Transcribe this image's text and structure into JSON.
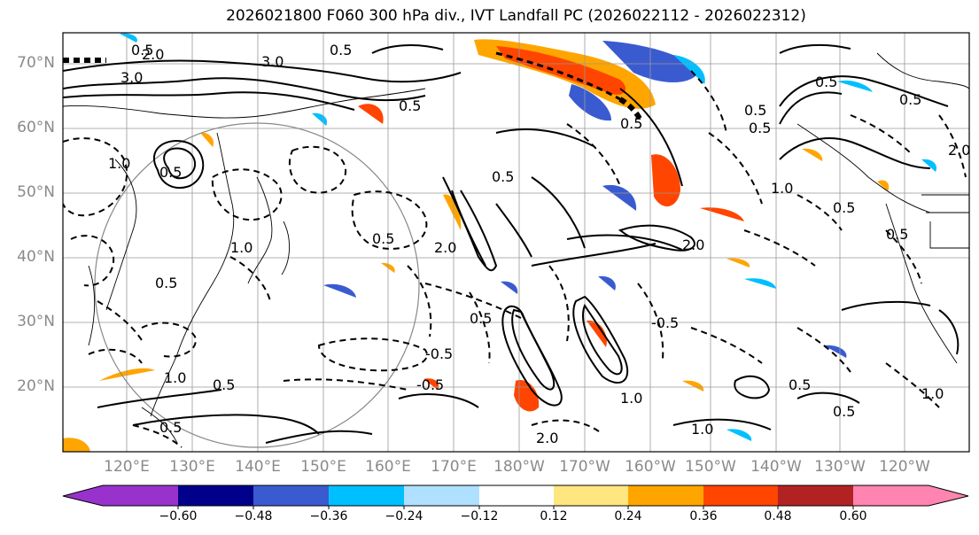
{
  "title": "2026021800 F060 300 hPa div., IVT Landfall PC (2026022112 - 2026022312)",
  "map": {
    "lat_labels": [
      "70°N",
      "60°N",
      "50°N",
      "40°N",
      "30°N",
      "20°N"
    ],
    "lon_labels": [
      "120°E",
      "130°E",
      "140°E",
      "150°E",
      "160°E",
      "170°E",
      "180°W",
      "170°W",
      "160°W",
      "150°W",
      "140°W",
      "130°W",
      "120°W"
    ],
    "contour_labels": [
      "3.0",
      "2.0",
      "0.5",
      "0.5",
      "1.0",
      "3.0",
      "0.5",
      "0.5",
      "2.0",
      "1.0",
      "0.5",
      "-0.5",
      "-0.5",
      "0.5",
      "1.0",
      "0.5",
      "-0.5",
      "0.5",
      "0.5",
      "0.5",
      "1.0",
      "2.0",
      "0.5",
      "0.5",
      "0.5",
      "1.0",
      "0.5",
      "1.0",
      "0.5",
      "0.5",
      "0.5",
      "2.0",
      "2.0",
      "0.5",
      "1.0",
      "0.5"
    ],
    "colors": {
      "land_line": "#000000",
      "grid": "#999999",
      "circle": "#888888"
    }
  },
  "colorbar": {
    "tick_labels": [
      "−0.60",
      "−0.48",
      "−0.36",
      "−0.24",
      "−0.12",
      "0.12",
      "0.24",
      "0.36",
      "0.48",
      "0.60"
    ],
    "colors": [
      "#9932cc",
      "#00008b",
      "#3a5bd0",
      "#00bfff",
      "#b0e0ff",
      "#ffffff",
      "#ffe680",
      "#ffa500",
      "#ff4500",
      "#b22222",
      "#ff85b0"
    ]
  }
}
